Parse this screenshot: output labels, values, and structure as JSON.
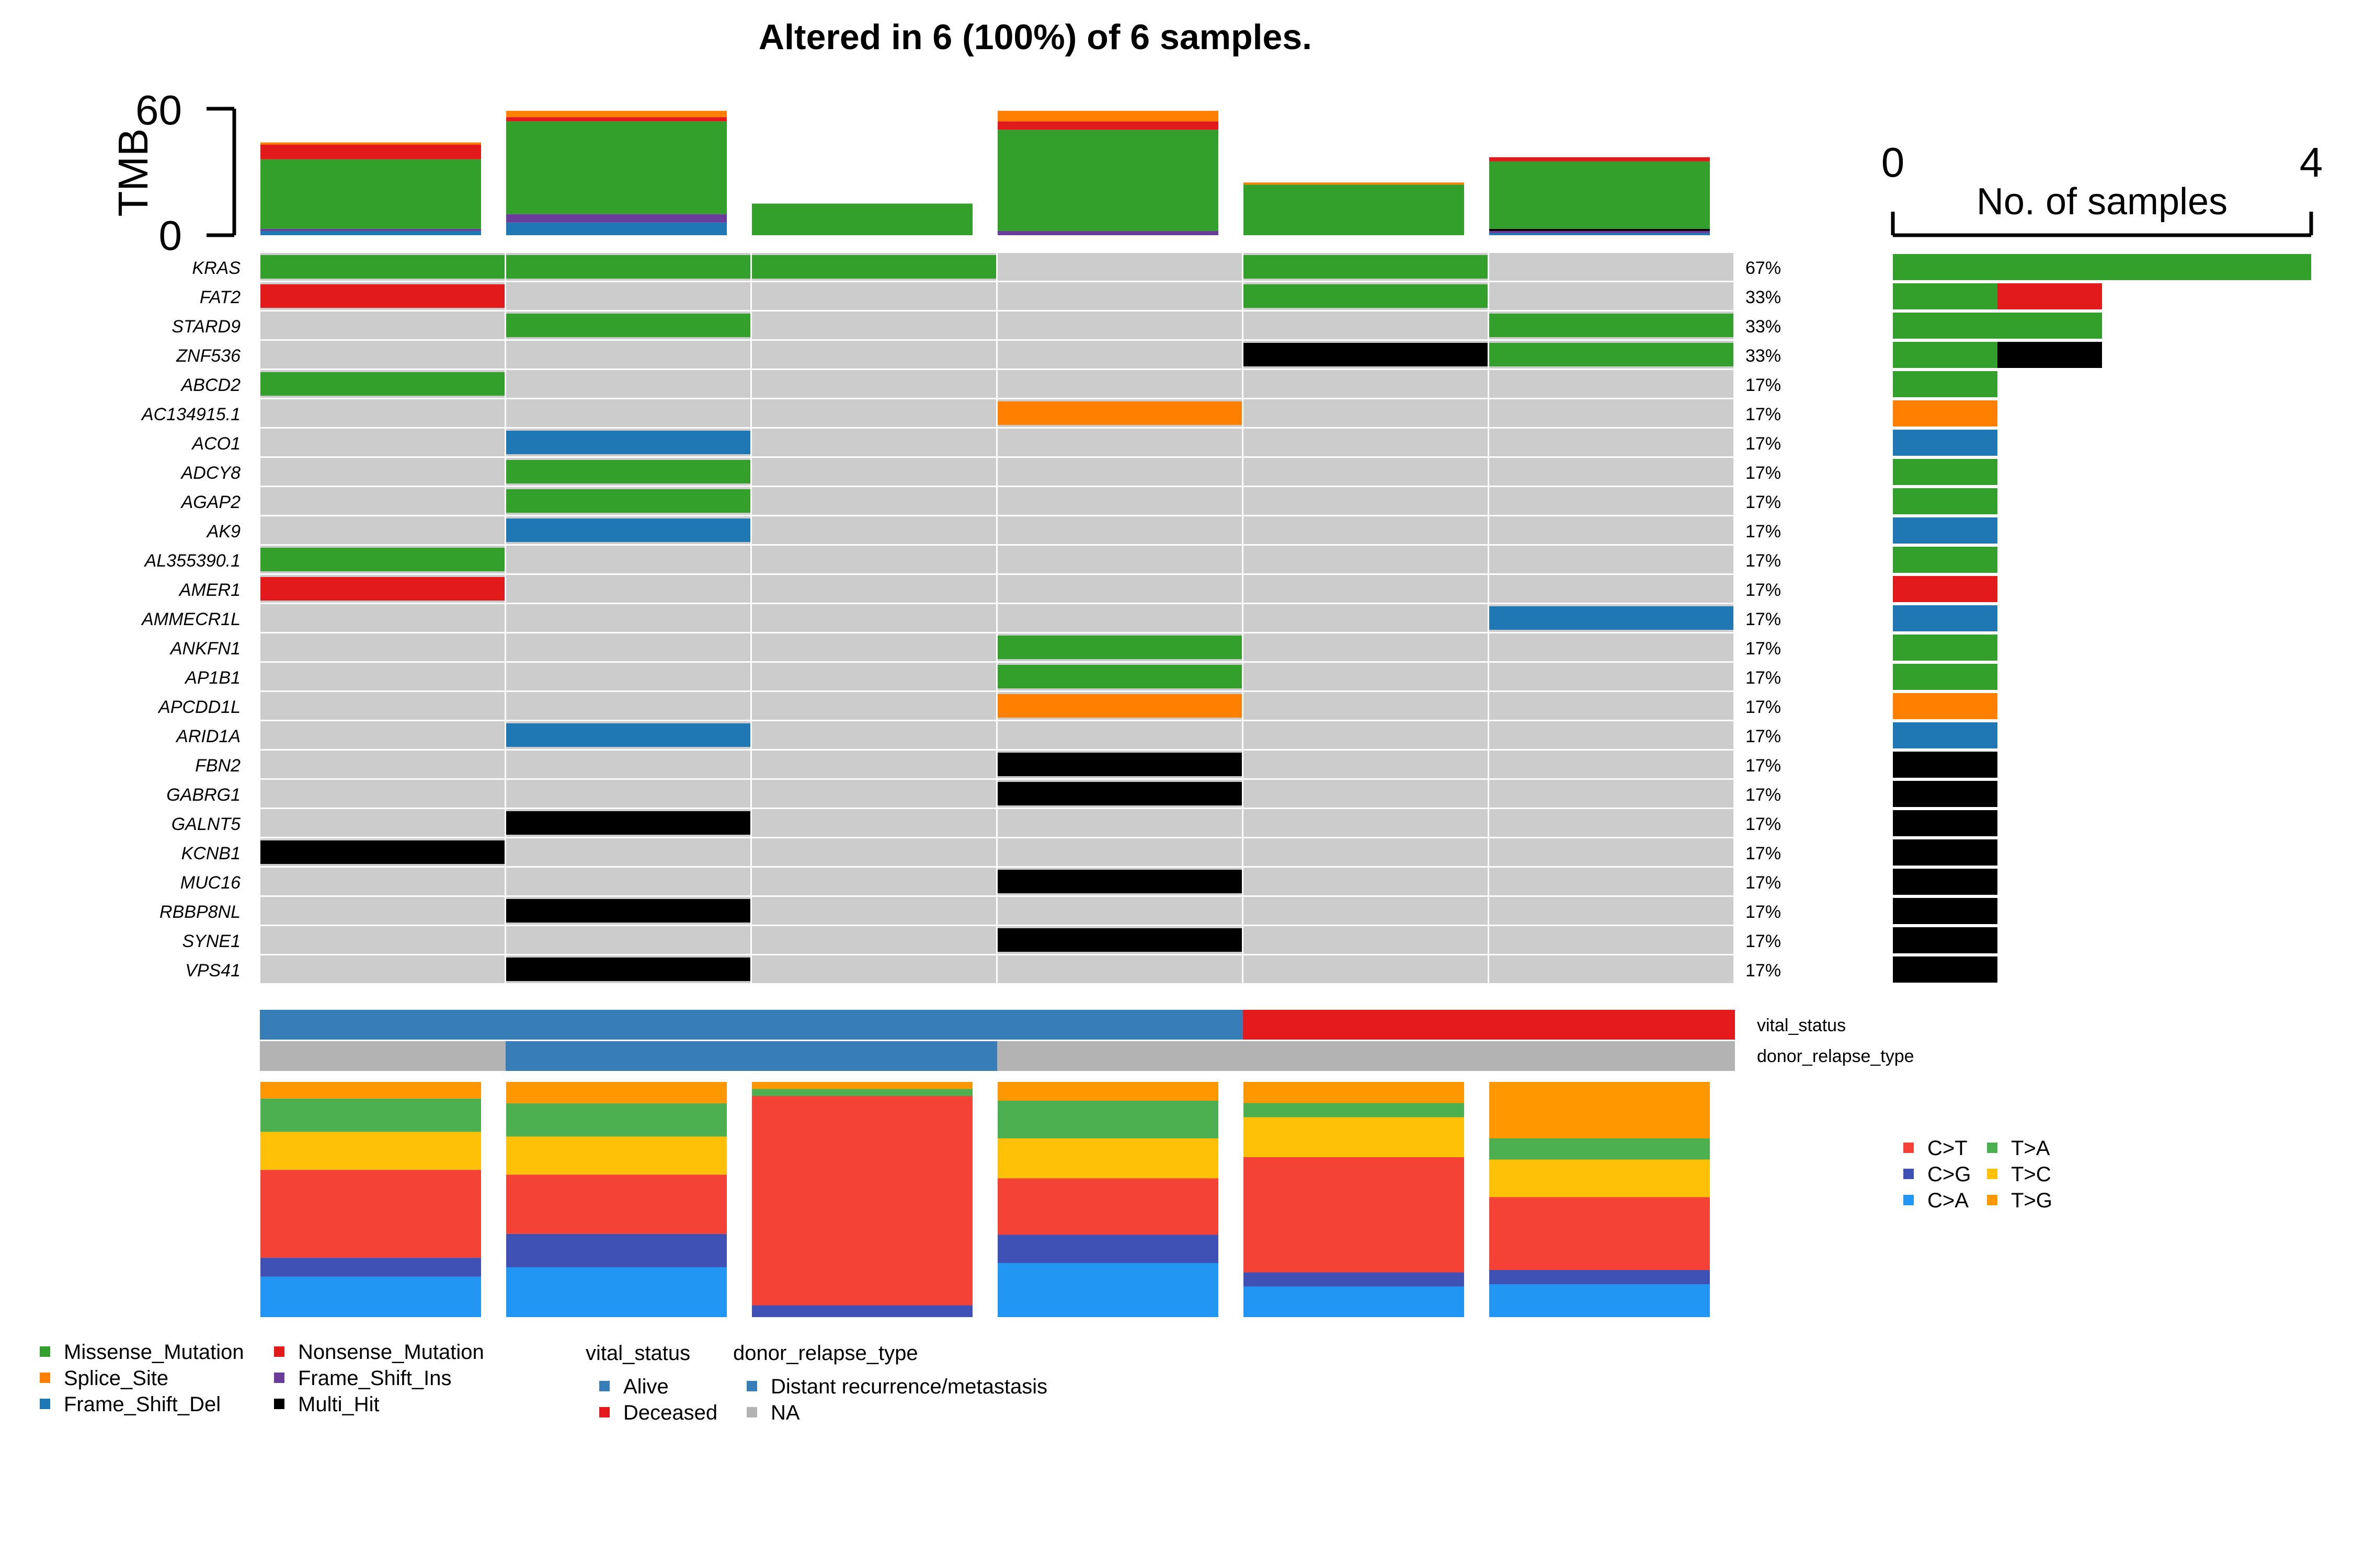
{
  "title": "Altered in 6 (100%) of 6 samples.",
  "tmb_axis": {
    "label": "TMB",
    "ticks": [
      "60",
      "0"
    ]
  },
  "samples_axis": {
    "label": "No. of samples",
    "ticks": [
      "0",
      "4"
    ]
  },
  "colors": {
    "Missense_Mutation": "#33a02c",
    "Nonsense_Mutation": "#e31a1c",
    "Splice_Site": "#ff7f00",
    "Frame_Shift_Ins": "#6a3d9a",
    "Frame_Shift_Del": "#1f78b4",
    "Multi_Hit": "#000000",
    "none": "#cccccc",
    "C>T": "#f44336",
    "C>G": "#3f51b5",
    "C>A": "#2196f3",
    "T>A": "#4caf50",
    "T>C": "#ffc107",
    "T>G": "#ff9800",
    "Alive": "#377eb8",
    "Deceased": "#e41a1c",
    "Distant recurrence/metastasis": "#377eb8",
    "NA": "#b3b3b3"
  },
  "legend_variant": {
    "col1": [
      "Missense_Mutation",
      "Splice_Site",
      "Frame_Shift_Del"
    ],
    "col2": [
      "Nonsense_Mutation",
      "Frame_Shift_Ins",
      "Multi_Hit"
    ]
  },
  "legend_anno": {
    "vital_title": "vital_status",
    "vital_items": [
      "Alive",
      "Deceased"
    ],
    "relapse_title": "donor_relapse_type",
    "relapse_items": [
      "Distant recurrence/metastasis",
      "NA"
    ]
  },
  "legend_titv": {
    "col1": [
      "C>T",
      "C>G",
      "C>A"
    ],
    "col2": [
      "T>A",
      "T>C",
      "T>G"
    ]
  },
  "annotation_labels": [
    "vital_status",
    "donor_relapse_type"
  ],
  "chart_data": {
    "type": "heatmap",
    "samples": 6,
    "genes": [
      "KRAS",
      "FAT2",
      "STARD9",
      "ZNF536",
      "ABCD2",
      "AC134915.1",
      "ACO1",
      "ADCY8",
      "AGAP2",
      "AK9",
      "AL355390.1",
      "AMER1",
      "AMMECR1L",
      "ANKFN1",
      "AP1B1",
      "APCDD1L",
      "ARID1A",
      "FBN2",
      "GABRG1",
      "GALNT5",
      "KCNB1",
      "MUC16",
      "RBBP8NL",
      "SYNE1",
      "VPS41"
    ],
    "percent": [
      "67%",
      "33%",
      "33%",
      "33%",
      "17%",
      "17%",
      "17%",
      "17%",
      "17%",
      "17%",
      "17%",
      "17%",
      "17%",
      "17%",
      "17%",
      "17%",
      "17%",
      "17%",
      "17%",
      "17%",
      "17%",
      "17%",
      "17%",
      "17%",
      "17%"
    ],
    "matrix": [
      [
        "Missense_Mutation",
        "Missense_Mutation",
        "Missense_Mutation",
        "",
        "Missense_Mutation",
        ""
      ],
      [
        "Nonsense_Mutation",
        "",
        "",
        "",
        "Missense_Mutation",
        ""
      ],
      [
        "",
        "Missense_Mutation",
        "",
        "",
        "",
        "Missense_Mutation"
      ],
      [
        "",
        "",
        "",
        "",
        "Multi_Hit",
        "Missense_Mutation"
      ],
      [
        "Missense_Mutation",
        "",
        "",
        "",
        "",
        ""
      ],
      [
        "",
        "",
        "",
        "Splice_Site",
        "",
        ""
      ],
      [
        "",
        "Frame_Shift_Del",
        "",
        "",
        "",
        ""
      ],
      [
        "",
        "Missense_Mutation",
        "",
        "",
        "",
        ""
      ],
      [
        "",
        "Missense_Mutation",
        "",
        "",
        "",
        ""
      ],
      [
        "",
        "Frame_Shift_Del",
        "",
        "",
        "",
        ""
      ],
      [
        "Missense_Mutation",
        "",
        "",
        "",
        "",
        ""
      ],
      [
        "Nonsense_Mutation",
        "",
        "",
        "",
        "",
        ""
      ],
      [
        "",
        "",
        "",
        "",
        "",
        "Frame_Shift_Del"
      ],
      [
        "",
        "",
        "",
        "Missense_Mutation",
        "",
        ""
      ],
      [
        "",
        "",
        "",
        "Missense_Mutation",
        "",
        ""
      ],
      [
        "",
        "",
        "",
        "Splice_Site",
        "",
        ""
      ],
      [
        "",
        "Frame_Shift_Del",
        "",
        "",
        "",
        ""
      ],
      [
        "",
        "",
        "",
        "Multi_Hit",
        "",
        ""
      ],
      [
        "",
        "",
        "",
        "Multi_Hit",
        "",
        ""
      ],
      [
        "",
        "Multi_Hit",
        "",
        "",
        "",
        ""
      ],
      [
        "Multi_Hit",
        "",
        "",
        "",
        "",
        ""
      ],
      [
        "",
        "",
        "",
        "Multi_Hit",
        "",
        ""
      ],
      [
        "",
        "Multi_Hit",
        "",
        "",
        "",
        ""
      ],
      [
        "",
        "",
        "",
        "Multi_Hit",
        "",
        ""
      ],
      [
        "",
        "Multi_Hit",
        "",
        "",
        "",
        ""
      ]
    ],
    "gene_bars": [
      [
        {
          "type": "Missense_Mutation",
          "n": 4
        }
      ],
      [
        {
          "type": "Missense_Mutation",
          "n": 1
        },
        {
          "type": "Nonsense_Mutation",
          "n": 1
        }
      ],
      [
        {
          "type": "Missense_Mutation",
          "n": 2
        }
      ],
      [
        {
          "type": "Missense_Mutation",
          "n": 1
        },
        {
          "type": "Multi_Hit",
          "n": 1
        }
      ],
      [
        {
          "type": "Missense_Mutation",
          "n": 1
        }
      ],
      [
        {
          "type": "Splice_Site",
          "n": 1
        }
      ],
      [
        {
          "type": "Frame_Shift_Del",
          "n": 1
        }
      ],
      [
        {
          "type": "Missense_Mutation",
          "n": 1
        }
      ],
      [
        {
          "type": "Missense_Mutation",
          "n": 1
        }
      ],
      [
        {
          "type": "Frame_Shift_Del",
          "n": 1
        }
      ],
      [
        {
          "type": "Missense_Mutation",
          "n": 1
        }
      ],
      [
        {
          "type": "Nonsense_Mutation",
          "n": 1
        }
      ],
      [
        {
          "type": "Frame_Shift_Del",
          "n": 1
        }
      ],
      [
        {
          "type": "Missense_Mutation",
          "n": 1
        }
      ],
      [
        {
          "type": "Missense_Mutation",
          "n": 1
        }
      ],
      [
        {
          "type": "Splice_Site",
          "n": 1
        }
      ],
      [
        {
          "type": "Frame_Shift_Del",
          "n": 1
        }
      ],
      [
        {
          "type": "Multi_Hit",
          "n": 1
        }
      ],
      [
        {
          "type": "Multi_Hit",
          "n": 1
        }
      ],
      [
        {
          "type": "Multi_Hit",
          "n": 1
        }
      ],
      [
        {
          "type": "Multi_Hit",
          "n": 1
        }
      ],
      [
        {
          "type": "Multi_Hit",
          "n": 1
        }
      ],
      [
        {
          "type": "Multi_Hit",
          "n": 1
        }
      ],
      [
        {
          "type": "Multi_Hit",
          "n": 1
        }
      ],
      [
        {
          "type": "Multi_Hit",
          "n": 1
        }
      ]
    ],
    "samples_xlim": [
      0,
      4
    ],
    "tmb_ylim": [
      0,
      60
    ],
    "tmb": [
      [
        {
          "type": "Frame_Shift_Del",
          "v": 2
        },
        {
          "type": "Frame_Shift_Ins",
          "v": 1
        },
        {
          "type": "Missense_Mutation",
          "v": 33
        },
        {
          "type": "Nonsense_Mutation",
          "v": 7
        },
        {
          "type": "Splice_Site",
          "v": 1
        }
      ],
      [
        {
          "type": "Frame_Shift_Del",
          "v": 6
        },
        {
          "type": "Frame_Shift_Ins",
          "v": 4
        },
        {
          "type": "Missense_Mutation",
          "v": 44
        },
        {
          "type": "Nonsense_Mutation",
          "v": 2
        },
        {
          "type": "Splice_Site",
          "v": 3
        }
      ],
      [
        {
          "type": "Missense_Mutation",
          "v": 15
        }
      ],
      [
        {
          "type": "Frame_Shift_Ins",
          "v": 2
        },
        {
          "type": "Missense_Mutation",
          "v": 48
        },
        {
          "type": "Nonsense_Mutation",
          "v": 4
        },
        {
          "type": "Splice_Site",
          "v": 5
        }
      ],
      [
        {
          "type": "Missense_Mutation",
          "v": 24
        },
        {
          "type": "Splice_Site",
          "v": 1
        }
      ],
      [
        {
          "type": "Frame_Shift_Del",
          "v": 1
        },
        {
          "type": "Frame_Shift_Ins",
          "v": 1
        },
        {
          "type": "Multi_Hit",
          "v": 1
        },
        {
          "type": "Missense_Mutation",
          "v": 32
        },
        {
          "type": "Nonsense_Mutation",
          "v": 2
        }
      ]
    ],
    "vital_status": [
      "Alive",
      "Alive",
      "Alive",
      "Alive",
      "Deceased",
      "Deceased"
    ],
    "donor_relapse_type": [
      "NA",
      "Distant recurrence/metastasis",
      "Distant recurrence/metastasis",
      "NA",
      "NA",
      "NA"
    ],
    "titv_order": [
      "C>A",
      "C>G",
      "C>T",
      "T>C",
      "T>A",
      "T>G"
    ],
    "titv_fraction": [
      {
        "C>A": 17,
        "C>G": 8,
        "C>T": 37,
        "T>C": 16,
        "T>A": 14,
        "T>G": 7
      },
      {
        "C>A": 21,
        "C>G": 14,
        "C>T": 25,
        "T>C": 16,
        "T>A": 14,
        "T>G": 9
      },
      {
        "C>A": 0,
        "C>G": 5,
        "C>T": 89,
        "T>C": 0,
        "T>A": 3,
        "T>G": 3
      },
      {
        "C>A": 23,
        "C>G": 12,
        "C>T": 24,
        "T>C": 17,
        "T>A": 16,
        "T>G": 8
      },
      {
        "C>A": 13,
        "C>G": 6,
        "C>T": 49,
        "T>C": 17,
        "T>A": 6,
        "T>G": 9
      },
      {
        "C>A": 14,
        "C>G": 6,
        "C>T": 31,
        "T>C": 16,
        "T>A": 9,
        "T>G": 24
      }
    ]
  }
}
